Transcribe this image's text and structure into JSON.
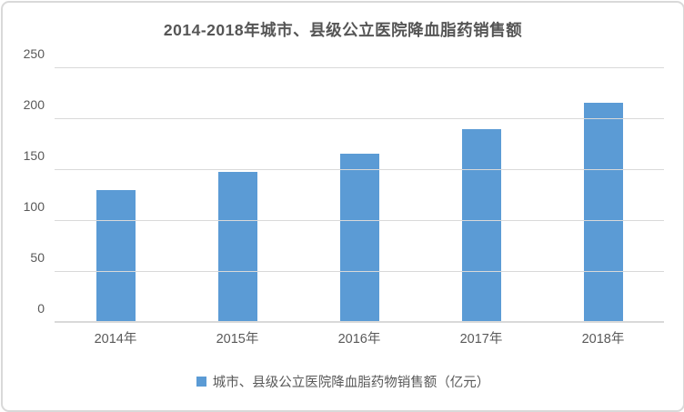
{
  "title": "2014-2018年城市、县级公立医院降血脂药销售额",
  "chart_data": {
    "type": "bar",
    "title": "2014-2018年城市、县级公立医院降血脂药销售额",
    "categories": [
      "2014年",
      "2015年",
      "2016年",
      "2017年",
      "2018年"
    ],
    "series": [
      {
        "name": "城市、县级公立医院降血脂药物销售额（亿元）",
        "values": [
          130,
          148,
          166,
          190,
          216
        ]
      }
    ],
    "xlabel": "",
    "ylabel": "",
    "ylim": [
      0,
      250
    ],
    "yticks": [
      0,
      50,
      100,
      150,
      200,
      250
    ],
    "grid": true,
    "legend_position": "bottom",
    "colors": {
      "bar": "#5B9BD5",
      "gridline": "#D9D9D9",
      "text": "#595959",
      "title": "#555555"
    }
  },
  "legend": {
    "label": "城市、县级公立医院降血脂药物销售额（亿元）"
  }
}
